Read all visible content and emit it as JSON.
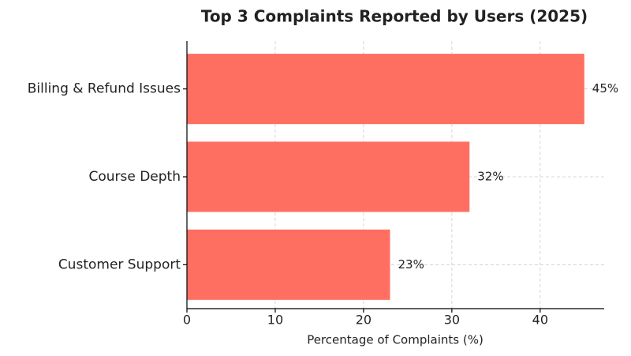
{
  "chart_data": {
    "type": "barh",
    "title": "Top 3 Complaints Reported by Users (2025)",
    "x_label": "Percentage of Complaints (%)",
    "categories": [
      "Billing & Refund Issues",
      "Course Depth",
      "Customer Support"
    ],
    "values": [
      45,
      32,
      23
    ],
    "value_labels": [
      "45%",
      "32%",
      "23%"
    ],
    "color": "#ff6f61",
    "xlim": [
      0,
      47.25
    ],
    "xticks": [
      0,
      10,
      20,
      30,
      40
    ],
    "grid": true
  }
}
